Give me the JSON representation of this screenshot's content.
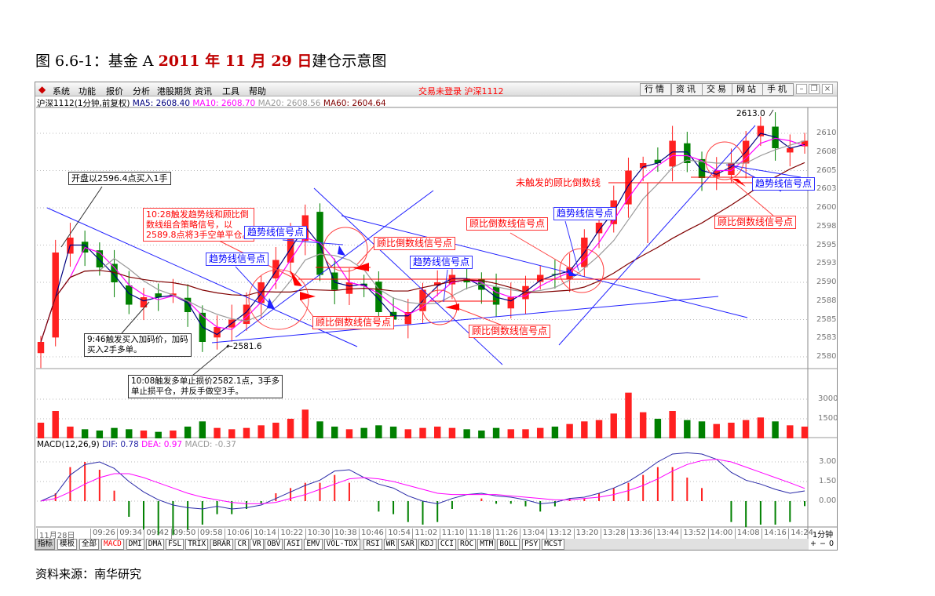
{
  "doc": {
    "title_prefix": "图 6.6-1：基金 A ",
    "title_date": "2011 年 11 月 29 日",
    "title_suffix": "建仓示意图",
    "source": "资料来源：南华研究"
  },
  "menu": {
    "items": [
      "系统",
      "功能",
      "报价",
      "分析",
      "港股期货",
      "资讯",
      "工具",
      "帮助"
    ],
    "status": "交易未登录  沪深1112",
    "right_buttons": [
      "行情",
      "资讯",
      "交易",
      "网站",
      "手机"
    ]
  },
  "info": {
    "symbol": "沪深1112(1分钟,前复权)",
    "ma5": "MA5: 2608.40",
    "ma10": "MA10: 2608.70",
    "ma20": "MA20: 2608.56",
    "ma60": "MA60: 2604.64"
  },
  "macd_info": {
    "name": "MACD(12,26,9)",
    "dif": "DIF: 0.78",
    "dea": "DEA: 0.97",
    "macd": "MACD: -0.37"
  },
  "colors": {
    "up": "#ff2020",
    "down": "#008000",
    "ma5": "#000080",
    "ma10": "#ff00ff",
    "ma20": "#999999",
    "ma60": "#800000",
    "trend": "#2020ff",
    "gubi": "#ff0000"
  },
  "price_axis": [
    "2610",
    "2608",
    "2605",
    "2603",
    "2600",
    "2598",
    "2595",
    "2593",
    "2590",
    "2588",
    "2585",
    "2583",
    "2580"
  ],
  "volume_axis": [
    "3000",
    "1500"
  ],
  "macd_axis": [
    "3.00",
    "1.50",
    "0.00"
  ],
  "time_axis": [
    "11月28日",
    "09:26",
    "09:34",
    "09:42",
    "09:50",
    "09:58",
    "10:06",
    "10:14",
    "10:22",
    "10:30",
    "10:38",
    "10:46",
    "10:54",
    "11:02",
    "11:10",
    "11:18",
    "11:26",
    "13:04",
    "13:12",
    "13:20",
    "13:28",
    "13:36",
    "13:44",
    "13:52",
    "14:00",
    "14:08",
    "14:16",
    "14:24"
  ],
  "period": "1分钟",
  "zoom_buttons": [
    "+",
    "−",
    "0"
  ],
  "toolbar": [
    "指标",
    "模板",
    "全部",
    "MACD",
    "DMI",
    "DMA",
    "FSL",
    "TRIX",
    "BRAR",
    "CR",
    "VR",
    "OBV",
    "ASI",
    "EMV",
    "VOL-TDX",
    "RSI",
    "WR",
    "SAR",
    "KDJ",
    "CCI",
    "ROC",
    "MTM",
    "BOLL",
    "PSY",
    "MCST"
  ],
  "annotations": [
    {
      "text": "开盘以2596.4点买入1手"
    },
    {
      "text": "10:28触发趋势线和顾比倒\n数线组合策略信号，以\n2589.8点将3手空单平仓。"
    },
    {
      "text": "趋势线信号点"
    },
    {
      "text": "趋势线信号点"
    },
    {
      "text": "顾比倒数线信号点"
    },
    {
      "text": "趋势线信号点"
    },
    {
      "text": "顾比倒数线信号点"
    },
    {
      "text": "顾比倒数线信号点"
    },
    {
      "text": "顾比倒数线信号点"
    },
    {
      "text": "趋势线信号点"
    },
    {
      "text": "未触发的顾比倒数线"
    },
    {
      "text": "趋势线信号点"
    },
    {
      "text": "顾比倒数线信号点"
    },
    {
      "text": "9:46触发买入加码价，加码\n买入2手多单。"
    },
    {
      "text": "10:08触发多单止损价2582.1点，3手多\n单止损平仓，并反手做空3手。"
    },
    {
      "text": "←2581.6"
    },
    {
      "text": "2613.0"
    }
  ],
  "chart_data": {
    "type": "candlestick",
    "note_values": "approximate closes sampled across the session",
    "ylim": [
      2579,
      2614
    ],
    "close": [
      2582,
      2594,
      2596,
      2594,
      2592,
      2590,
      2587,
      2588,
      2588,
      2588.5,
      2586,
      2582,
      2584,
      2585,
      2587,
      2590,
      2593,
      2596,
      2599,
      2591,
      2589,
      2590,
      2589.5,
      2586,
      2585,
      2586,
      2589,
      2590,
      2591,
      2590,
      2589,
      2587,
      2588,
      2589.5,
      2591,
      2591,
      2592,
      2596,
      2598,
      2601,
      2605,
      2606,
      2606,
      2609,
      2606,
      2604,
      2605,
      2606,
      2609,
      2611,
      2608,
      2608,
      2609
    ],
    "volume": [
      1200,
      2100,
      900,
      700,
      600,
      800,
      700,
      600,
      500,
      600,
      900,
      1300,
      800,
      700,
      800,
      1000,
      1200,
      1500,
      2200,
      1300,
      900,
      700,
      800,
      1000,
      900,
      700,
      800,
      900,
      800,
      700,
      600,
      800,
      700,
      700,
      800,
      900,
      1100,
      1300,
      1400,
      1900,
      3500,
      2000,
      1500,
      2100,
      1400,
      1300,
      1100,
      1200,
      1400,
      1600,
      1300,
      1000,
      900
    ],
    "dif": [
      0,
      0.5,
      2,
      2.8,
      3,
      2.5,
      1.5,
      0.7,
      0.1,
      -0.3,
      -0.5,
      -0.6,
      -0.4,
      -0.6,
      -0.5,
      -0.3,
      0.2,
      0.7,
      1.2,
      1.6,
      2.3,
      2.4,
      1.8,
      1.3,
      1.0,
      0.4,
      0.0,
      -0.2,
      0.2,
      0.5,
      0.6,
      0.4,
      0.3,
      0.1,
      -0.2,
      -0.1,
      0.2,
      0.3,
      0.6,
      1.0,
      1.5,
      2.2,
      3.0,
      3.6,
      3.7,
      3.6,
      3.2,
      2.2,
      1.6,
      1.3,
      0.9,
      0.6,
      0.78
    ],
    "dea": [
      0,
      0.2,
      0.7,
      1.3,
      1.8,
      2.1,
      2.1,
      1.8,
      1.4,
      1.0,
      0.6,
      0.3,
      0.1,
      -0.1,
      -0.2,
      -0.2,
      -0.1,
      0.2,
      0.5,
      0.9,
      1.3,
      1.7,
      1.8,
      1.7,
      1.5,
      1.2,
      0.9,
      0.6,
      0.5,
      0.5,
      0.5,
      0.5,
      0.4,
      0.3,
      0.2,
      0.1,
      0.1,
      0.2,
      0.3,
      0.5,
      0.8,
      1.2,
      1.7,
      2.3,
      2.8,
      3.1,
      3.2,
      3.0,
      2.6,
      2.2,
      1.8,
      1.4,
      0.97
    ],
    "high_marker": 2613.0,
    "low_marker": 2581.6
  }
}
